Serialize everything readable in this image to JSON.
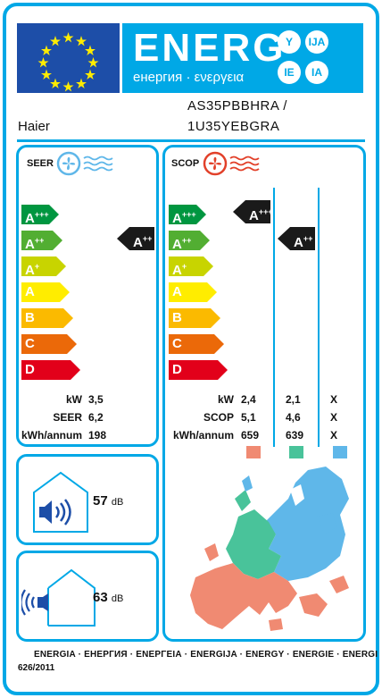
{
  "header": {
    "energy_word": "ENERG",
    "energy_sub": "енергия · ενεργεια",
    "lang_circles": [
      "Y",
      "IJA",
      "IE",
      "IA"
    ]
  },
  "supplier": "Haier",
  "model_lines": [
    "AS35PBBHRA /",
    "1U35YEBGRA"
  ],
  "seer": {
    "title": "SEER",
    "classes": [
      "A+++",
      "A++",
      "A+",
      "A",
      "B",
      "C",
      "D"
    ],
    "rating": "A++",
    "labels": [
      "kW",
      "SEER",
      "kWh/annum"
    ],
    "values": [
      "3,5",
      "6,2",
      "198"
    ]
  },
  "scop": {
    "title": "SCOP",
    "classes": [
      "A+++",
      "A++",
      "A+",
      "A",
      "B",
      "C",
      "D"
    ],
    "rating_warm": "A+++",
    "rating_avg": "A++",
    "labels": [
      "kW",
      "SCOP",
      "kWh/annum"
    ],
    "col_warm": [
      "2,4",
      "5,1",
      "659"
    ],
    "col_avg": [
      "2,1",
      "4,6",
      "639"
    ],
    "col_cold": [
      "X",
      "X",
      "X"
    ]
  },
  "noise": {
    "indoor": "57",
    "outdoor": "63",
    "unit": "dB"
  },
  "footer": {
    "languages": "ENERGIA · ЕНЕРГИЯ · ΕΝΕΡΓΕΙΑ · ENERGIJA · ENERGY · ENERGIE · ENERGI",
    "regulation": "626/2011"
  },
  "colors": {
    "border": "#00a8e6",
    "eu_blue": "#1d4ea8",
    "class_colors": [
      "#009640",
      "#52ae32",
      "#c8d400",
      "#ffed00",
      "#fbba00",
      "#eb6909",
      "#e2001a"
    ],
    "zone_warm": "#f08a72",
    "zone_avg": "#49c39a",
    "zone_cold": "#5fb7e9"
  }
}
